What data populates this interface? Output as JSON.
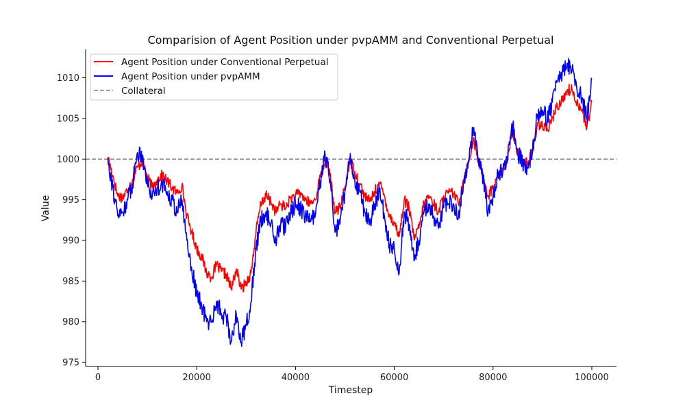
{
  "chart_data": {
    "type": "line",
    "title": "Comparision of Agent Position under pvpAMM and Conventional Perpetual",
    "xlabel": "Timestep",
    "ylabel": "Value",
    "xlim": [
      -2500,
      105000
    ],
    "ylim": [
      974.5,
      1013.5
    ],
    "xticks": [
      0,
      20000,
      40000,
      60000,
      80000,
      100000
    ],
    "yticks": [
      975,
      980,
      985,
      990,
      995,
      1000,
      1005,
      1010
    ],
    "grid": false,
    "legend_position": "top-left",
    "collateral": 1000,
    "series": [
      {
        "name": "Agent Position under Conventional Perpetual",
        "color": "#ff0000",
        "x": [
          2000,
          3000,
          4000,
          5000,
          6000,
          7000,
          8000,
          9000,
          10000,
          11000,
          12000,
          13000,
          14000,
          15000,
          16000,
          17000,
          18000,
          19000,
          20000,
          21000,
          22000,
          23000,
          24000,
          25000,
          26000,
          27000,
          28000,
          29000,
          30000,
          31000,
          32000,
          33000,
          34000,
          35000,
          36000,
          37000,
          38000,
          39000,
          40000,
          41000,
          42000,
          43000,
          44000,
          45000,
          46000,
          47000,
          48000,
          49000,
          50000,
          51000,
          52000,
          53000,
          54000,
          55000,
          56000,
          57000,
          58000,
          59000,
          60000,
          61000,
          62000,
          63000,
          64000,
          65000,
          66000,
          67000,
          68000,
          69000,
          70000,
          71000,
          72000,
          73000,
          74000,
          75000,
          76000,
          77000,
          78000,
          79000,
          80000,
          81000,
          82000,
          83000,
          84000,
          85000,
          86000,
          87000,
          88000,
          89000,
          90000,
          91000,
          92000,
          93000,
          94000,
          95000,
          96000,
          97000,
          98000,
          99000,
          100000
        ],
        "values": [
          1000.2,
          998.0,
          995.5,
          995.3,
          996.2,
          997.5,
          999.0,
          999.8,
          997.8,
          996.5,
          997.5,
          998.0,
          997.3,
          996.5,
          995.8,
          996.8,
          993.0,
          991.0,
          989.0,
          988.0,
          986.0,
          985.5,
          987.0,
          986.2,
          985.8,
          984.0,
          986.5,
          984.0,
          984.8,
          986.0,
          991.0,
          994.5,
          995.5,
          994.8,
          993.5,
          994.5,
          994.0,
          995.2,
          995.5,
          995.8,
          995.0,
          994.5,
          995.0,
          997.8,
          999.8,
          998.0,
          993.5,
          994.0,
          996.5,
          999.8,
          998.5,
          997.0,
          995.5,
          994.8,
          996.0,
          997.0,
          995.5,
          993.0,
          992.2,
          990.5,
          995.0,
          994.0,
          990.2,
          991.5,
          994.5,
          995.5,
          994.5,
          993.5,
          995.5,
          995.8,
          995.8,
          994.5,
          997.5,
          999.5,
          1002.5,
          999.8,
          998.0,
          995.5,
          996.5,
          998.0,
          998.5,
          1000.0,
          1003.5,
          1000.8,
          999.8,
          999.5,
          1000.8,
          1004.5,
          1004.0,
          1003.5,
          1005.0,
          1006.5,
          1007.2,
          1008.5,
          1008.5,
          1007.0,
          1006.0,
          1003.8,
          1007.0
        ]
      },
      {
        "name": "Agent Position under pvpAMM",
        "color": "#0000ff",
        "x": [
          2000,
          3000,
          4000,
          5000,
          6000,
          7000,
          8000,
          9000,
          10000,
          11000,
          12000,
          13000,
          14000,
          15000,
          16000,
          17000,
          18000,
          19000,
          20000,
          21000,
          22000,
          23000,
          24000,
          25000,
          26000,
          27000,
          28000,
          29000,
          30000,
          31000,
          32000,
          33000,
          34000,
          35000,
          36000,
          37000,
          38000,
          39000,
          40000,
          41000,
          42000,
          43000,
          44000,
          45000,
          46000,
          47000,
          48000,
          49000,
          50000,
          51000,
          52000,
          53000,
          54000,
          55000,
          56000,
          57000,
          58000,
          59000,
          60000,
          61000,
          62000,
          63000,
          64000,
          65000,
          66000,
          67000,
          68000,
          69000,
          70000,
          71000,
          72000,
          73000,
          74000,
          75000,
          76000,
          77000,
          78000,
          79000,
          80000,
          81000,
          82000,
          83000,
          84000,
          85000,
          86000,
          87000,
          88000,
          89000,
          90000,
          91000,
          92000,
          93000,
          94000,
          95000,
          96000,
          97000,
          98000,
          99000,
          100000
        ],
        "values": [
          1000.2,
          996.5,
          993.0,
          993.5,
          995.0,
          997.0,
          1000.8,
          1000.5,
          997.0,
          995.5,
          996.5,
          997.0,
          996.0,
          995.0,
          993.5,
          995.0,
          990.0,
          986.5,
          983.5,
          982.0,
          980.0,
          980.0,
          982.5,
          981.0,
          980.5,
          977.5,
          981.0,
          977.5,
          979.5,
          982.5,
          989.0,
          992.5,
          993.5,
          992.0,
          990.0,
          992.0,
          991.5,
          993.5,
          994.5,
          994.0,
          993.0,
          992.5,
          993.0,
          997.0,
          1000.5,
          997.5,
          991.0,
          992.0,
          996.0,
          1000.0,
          997.5,
          996.0,
          993.5,
          992.0,
          994.5,
          996.0,
          993.0,
          989.5,
          989.0,
          986.0,
          993.5,
          992.0,
          987.5,
          990.0,
          993.5,
          994.5,
          993.0,
          991.5,
          994.0,
          994.5,
          994.5,
          993.0,
          997.0,
          999.8,
          1003.8,
          1000.0,
          997.5,
          993.5,
          995.5,
          998.0,
          998.5,
          1000.5,
          1004.0,
          1000.8,
          999.5,
          999.0,
          1001.0,
          1005.5,
          1006.0,
          1005.0,
          1007.0,
          1009.5,
          1010.5,
          1011.8,
          1011.0,
          1008.5,
          1007.5,
          1005.0,
          1009.8
        ]
      },
      {
        "name": "Collateral",
        "color": "#808080",
        "dashed": true
      }
    ]
  }
}
